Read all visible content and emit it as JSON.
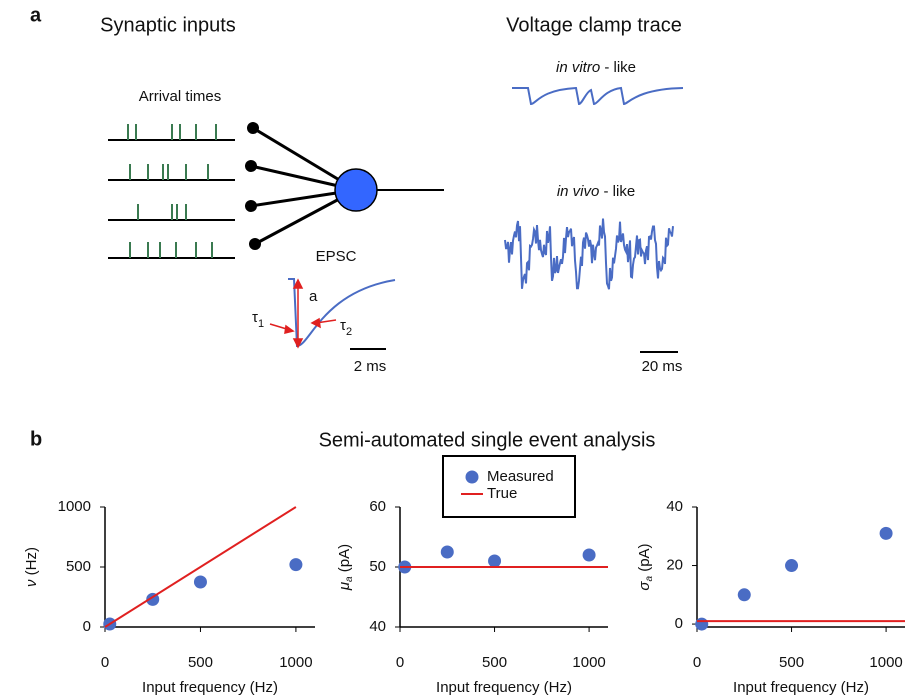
{
  "panel_a": {
    "label": "a",
    "left_title": "Synaptic inputs",
    "right_title": "Voltage clamp trace",
    "arrival_times": "Arrival times",
    "epsc": "EPSC",
    "amplitude": "a",
    "tau1": {
      "symbol": "τ",
      "subscript": "1"
    },
    "tau2": {
      "symbol": "τ",
      "subscript": "2"
    },
    "epsc_scale": "2 ms",
    "in_vitro": {
      "italic": "in vitro",
      "rest": " - like"
    },
    "in_vivo": {
      "italic": "in vivo",
      "rest": " - like"
    },
    "trace_scale": "20 ms"
  },
  "panel_b": {
    "label": "b",
    "title": "Semi-automated single event analysis"
  },
  "chart_data": [
    {
      "type": "scatter",
      "xlabel": "Input frequency (Hz)",
      "ylabel": {
        "symbol": "ν",
        "subscript": "",
        "unit": " (Hz)"
      },
      "xlim": [
        0,
        1100
      ],
      "ylim": [
        0,
        1000
      ],
      "xticks": [
        0,
        500,
        1000
      ],
      "yticks": [
        0,
        500,
        1000
      ],
      "series": [
        {
          "name": "Measured",
          "mode": "markers",
          "color": "#4a6cc4",
          "x": [
            25,
            250,
            500,
            1000
          ],
          "values": [
            25,
            230,
            375,
            520
          ]
        },
        {
          "name": "True",
          "mode": "line",
          "color": "#e02020",
          "x": [
            0,
            1000
          ],
          "values": [
            0,
            1000
          ]
        }
      ]
    },
    {
      "type": "scatter",
      "xlabel": "Input frequency (Hz)",
      "ylabel": {
        "symbol": "μ",
        "subscript": "a",
        "unit": " (pA)"
      },
      "xlim": [
        0,
        1100
      ],
      "ylim": [
        40,
        60
      ],
      "xticks": [
        0,
        500,
        1000
      ],
      "yticks": [
        40,
        50,
        60
      ],
      "legend": "upper center",
      "series": [
        {
          "name": "Measured",
          "mode": "markers",
          "color": "#4a6cc4",
          "x": [
            25,
            250,
            500,
            1000
          ],
          "values": [
            50,
            52.5,
            51,
            52
          ]
        },
        {
          "name": "True",
          "mode": "line",
          "color": "#e02020",
          "x": [
            0,
            1100
          ],
          "values": [
            50,
            50
          ]
        }
      ]
    },
    {
      "type": "scatter",
      "xlabel": "Input frequency (Hz)",
      "ylabel": {
        "symbol": "σ",
        "subscript": "a",
        "unit": " (pA)"
      },
      "xlim": [
        0,
        1100
      ],
      "ylim": [
        -1,
        40
      ],
      "xticks": [
        0,
        500,
        1000
      ],
      "yticks": [
        0,
        20,
        40
      ],
      "series": [
        {
          "name": "Measured",
          "mode": "markers",
          "color": "#4a6cc4",
          "x": [
            25,
            250,
            500,
            1000
          ],
          "values": [
            0,
            10,
            20,
            31
          ]
        },
        {
          "name": "True",
          "mode": "line",
          "color": "#e02020",
          "x": [
            0,
            1100
          ],
          "values": [
            1,
            1
          ]
        }
      ]
    }
  ]
}
